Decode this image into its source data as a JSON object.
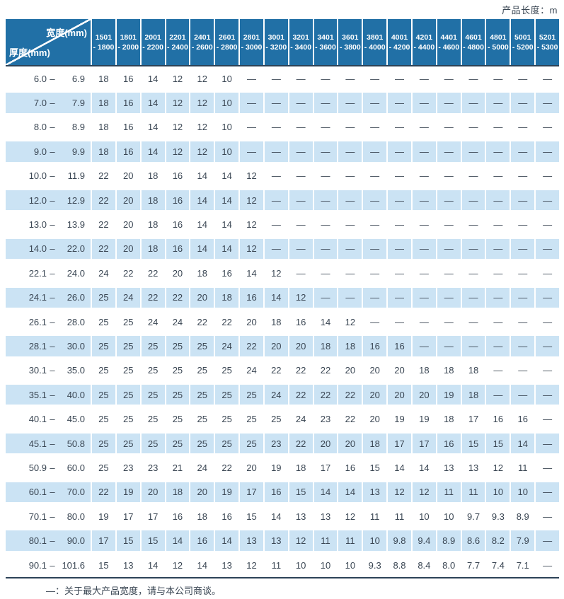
{
  "header": {
    "unit_label": "产品长度：m"
  },
  "chart_data": {
    "type": "table",
    "corner_top_right": "宽度(mm)",
    "corner_bottom_left": "厚度(mm)",
    "range_separator": "–",
    "columns": [
      {
        "top": "1501",
        "bottom": "- 1800"
      },
      {
        "top": "1801",
        "bottom": "- 2000"
      },
      {
        "top": "2001",
        "bottom": "- 2200"
      },
      {
        "top": "2201",
        "bottom": "- 2400"
      },
      {
        "top": "2401",
        "bottom": "- 2600"
      },
      {
        "top": "2601",
        "bottom": "- 2800"
      },
      {
        "top": "2801",
        "bottom": "- 3000"
      },
      {
        "top": "3001",
        "bottom": "- 3200"
      },
      {
        "top": "3201",
        "bottom": "- 3400"
      },
      {
        "top": "3401",
        "bottom": "- 3600"
      },
      {
        "top": "3601",
        "bottom": "- 3800"
      },
      {
        "top": "3801",
        "bottom": "- 4000"
      },
      {
        "top": "4001",
        "bottom": "- 4200"
      },
      {
        "top": "4201",
        "bottom": "- 4400"
      },
      {
        "top": "4401",
        "bottom": "- 4600"
      },
      {
        "top": "4601",
        "bottom": "- 4800"
      },
      {
        "top": "4801",
        "bottom": "- 5000"
      },
      {
        "top": "5001",
        "bottom": "- 5200"
      },
      {
        "top": "5201",
        "bottom": "- 5300"
      }
    ],
    "rows": [
      {
        "from": "6.0",
        "to": "6.9",
        "values": [
          "18",
          "16",
          "14",
          "12",
          "12",
          "10",
          "—",
          "—",
          "—",
          "—",
          "—",
          "—",
          "—",
          "—",
          "—",
          "—",
          "—",
          "—",
          "—"
        ]
      },
      {
        "from": "7.0",
        "to": "7.9",
        "values": [
          "18",
          "16",
          "14",
          "12",
          "12",
          "10",
          "—",
          "—",
          "—",
          "—",
          "—",
          "—",
          "—",
          "—",
          "—",
          "—",
          "—",
          "—",
          "—"
        ]
      },
      {
        "from": "8.0",
        "to": "8.9",
        "values": [
          "18",
          "16",
          "14",
          "12",
          "12",
          "10",
          "—",
          "—",
          "—",
          "—",
          "—",
          "—",
          "—",
          "—",
          "—",
          "—",
          "—",
          "—",
          "—"
        ]
      },
      {
        "from": "9.0",
        "to": "9.9",
        "values": [
          "18",
          "16",
          "14",
          "12",
          "12",
          "10",
          "—",
          "—",
          "—",
          "—",
          "—",
          "—",
          "—",
          "—",
          "—",
          "—",
          "—",
          "—",
          "—"
        ]
      },
      {
        "from": "10.0",
        "to": "11.9",
        "values": [
          "22",
          "20",
          "18",
          "16",
          "14",
          "14",
          "12",
          "—",
          "—",
          "—",
          "—",
          "—",
          "—",
          "—",
          "—",
          "—",
          "—",
          "—",
          "—"
        ]
      },
      {
        "from": "12.0",
        "to": "12.9",
        "values": [
          "22",
          "20",
          "18",
          "16",
          "14",
          "14",
          "12",
          "—",
          "—",
          "—",
          "—",
          "—",
          "—",
          "—",
          "—",
          "—",
          "—",
          "—",
          "—"
        ]
      },
      {
        "from": "13.0",
        "to": "13.9",
        "values": [
          "22",
          "20",
          "18",
          "16",
          "14",
          "14",
          "12",
          "—",
          "—",
          "—",
          "—",
          "—",
          "—",
          "—",
          "—",
          "—",
          "—",
          "—",
          "—"
        ]
      },
      {
        "from": "14.0",
        "to": "22.0",
        "values": [
          "22",
          "20",
          "18",
          "16",
          "14",
          "14",
          "12",
          "—",
          "—",
          "—",
          "—",
          "—",
          "—",
          "—",
          "—",
          "—",
          "—",
          "—",
          "—"
        ]
      },
      {
        "from": "22.1",
        "to": "24.0",
        "values": [
          "24",
          "22",
          "22",
          "20",
          "18",
          "16",
          "14",
          "12",
          "—",
          "—",
          "—",
          "—",
          "—",
          "—",
          "—",
          "—",
          "—",
          "—",
          "—"
        ]
      },
      {
        "from": "24.1",
        "to": "26.0",
        "values": [
          "25",
          "24",
          "22",
          "22",
          "20",
          "18",
          "16",
          "14",
          "12",
          "—",
          "—",
          "—",
          "—",
          "—",
          "—",
          "—",
          "—",
          "—",
          "—"
        ]
      },
      {
        "from": "26.1",
        "to": "28.0",
        "values": [
          "25",
          "25",
          "24",
          "24",
          "22",
          "22",
          "20",
          "18",
          "16",
          "14",
          "12",
          "—",
          "—",
          "—",
          "—",
          "—",
          "—",
          "—",
          "—"
        ]
      },
      {
        "from": "28.1",
        "to": "30.0",
        "values": [
          "25",
          "25",
          "25",
          "25",
          "25",
          "24",
          "22",
          "20",
          "20",
          "18",
          "18",
          "16",
          "16",
          "—",
          "—",
          "—",
          "—",
          "—",
          "—"
        ]
      },
      {
        "from": "30.1",
        "to": "35.0",
        "values": [
          "25",
          "25",
          "25",
          "25",
          "25",
          "25",
          "24",
          "22",
          "22",
          "22",
          "20",
          "20",
          "20",
          "18",
          "18",
          "18",
          "—",
          "—",
          "—"
        ]
      },
      {
        "from": "35.1",
        "to": "40.0",
        "values": [
          "25",
          "25",
          "25",
          "25",
          "25",
          "25",
          "25",
          "24",
          "22",
          "22",
          "22",
          "20",
          "20",
          "20",
          "19",
          "18",
          "—",
          "—",
          "—"
        ]
      },
      {
        "from": "40.1",
        "to": "45.0",
        "values": [
          "25",
          "25",
          "25",
          "25",
          "25",
          "25",
          "25",
          "25",
          "24",
          "23",
          "22",
          "20",
          "19",
          "19",
          "18",
          "17",
          "16",
          "16",
          "—"
        ]
      },
      {
        "from": "45.1",
        "to": "50.8",
        "values": [
          "25",
          "25",
          "25",
          "25",
          "25",
          "25",
          "25",
          "23",
          "22",
          "20",
          "20",
          "18",
          "17",
          "17",
          "16",
          "15",
          "15",
          "14",
          "—"
        ]
      },
      {
        "from": "50.9",
        "to": "60.0",
        "values": [
          "25",
          "23",
          "23",
          "21",
          "24",
          "22",
          "20",
          "19",
          "18",
          "17",
          "16",
          "15",
          "14",
          "14",
          "13",
          "13",
          "12",
          "11",
          "—"
        ]
      },
      {
        "from": "60.1",
        "to": "70.0",
        "values": [
          "22",
          "19",
          "20",
          "18",
          "20",
          "19",
          "17",
          "16",
          "15",
          "14",
          "14",
          "13",
          "12",
          "12",
          "11",
          "11",
          "10",
          "10",
          "—"
        ]
      },
      {
        "from": "70.1",
        "to": "80.0",
        "values": [
          "19",
          "17",
          "17",
          "16",
          "18",
          "16",
          "15",
          "14",
          "13",
          "13",
          "12",
          "11",
          "11",
          "10",
          "10",
          "9.7",
          "9.3",
          "8.9",
          "—"
        ]
      },
      {
        "from": "80.1",
        "to": "90.0",
        "values": [
          "17",
          "15",
          "15",
          "14",
          "16",
          "14",
          "13",
          "13",
          "12",
          "11",
          "11",
          "10",
          "9.8",
          "9.4",
          "8.9",
          "8.6",
          "8.2",
          "7.9",
          "—"
        ]
      },
      {
        "from": "90.1",
        "to": "101.6",
        "values": [
          "15",
          "13",
          "14",
          "12",
          "14",
          "13",
          "12",
          "11",
          "10",
          "10",
          "10",
          "9.3",
          "8.8",
          "8.4",
          "8.0",
          "7.7",
          "7.4",
          "7.1",
          "—"
        ]
      }
    ]
  },
  "footer": {
    "note": "—：关于最大产品宽度，请与本公司商谈。"
  },
  "colors": {
    "header_blue": "#2170A6",
    "row_alt_blue": "#CBE3F4",
    "divider_navy": "#2C4257",
    "text_dark": "#3A4653",
    "header_text": "#FFFFFF"
  }
}
